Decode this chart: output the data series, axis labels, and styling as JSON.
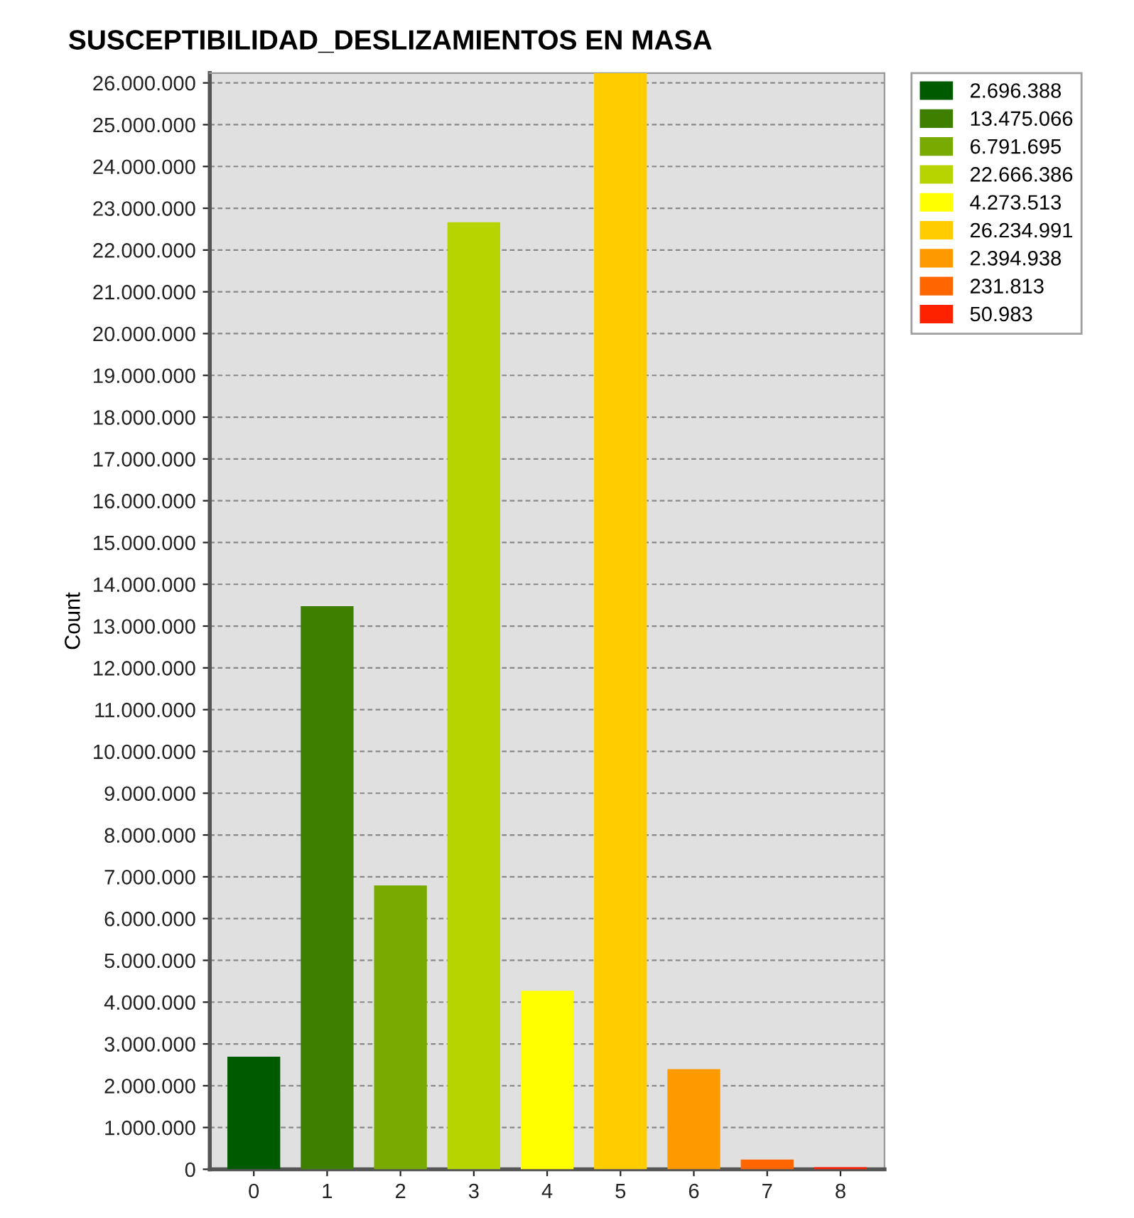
{
  "chart_data": {
    "type": "bar",
    "title": "SUSCEPTIBILIDAD_DESLIZAMIENTOS EN MASA",
    "ylabel": "Count",
    "categories": [
      "0",
      "1",
      "2",
      "3",
      "4",
      "5",
      "6",
      "7",
      "8"
    ],
    "series": [
      {
        "name": "2.696.388",
        "color": "#005a00",
        "values": [
          2696388,
          null,
          null,
          null,
          null,
          null,
          null,
          null,
          null
        ]
      },
      {
        "name": "13.475.066",
        "color": "#3f7f00",
        "values": [
          null,
          13475066,
          null,
          null,
          null,
          null,
          null,
          null,
          null
        ]
      },
      {
        "name": "6.791.695",
        "color": "#78aa00",
        "values": [
          null,
          null,
          6791695,
          null,
          null,
          null,
          null,
          null,
          null
        ]
      },
      {
        "name": "22.666.386",
        "color": "#b8d400",
        "values": [
          null,
          null,
          null,
          22666386,
          null,
          null,
          null,
          null,
          null
        ]
      },
      {
        "name": "4.273.513",
        "color": "#ffff00",
        "values": [
          null,
          null,
          null,
          null,
          4273513,
          null,
          null,
          null,
          null
        ]
      },
      {
        "name": "26.234.991",
        "color": "#ffcc00",
        "values": [
          null,
          null,
          null,
          null,
          null,
          26234991,
          null,
          null,
          null
        ]
      },
      {
        "name": "2.394.938",
        "color": "#ff9900",
        "values": [
          null,
          null,
          null,
          null,
          null,
          null,
          2394938,
          null,
          null
        ]
      },
      {
        "name": "231.813",
        "color": "#ff6600",
        "values": [
          null,
          null,
          null,
          null,
          null,
          null,
          null,
          231813,
          null
        ]
      },
      {
        "name": "50.983",
        "color": "#ff2200",
        "values": [
          null,
          null,
          null,
          null,
          null,
          null,
          null,
          null,
          50983
        ]
      }
    ],
    "ylim": [
      0,
      26234991
    ],
    "yticks": [
      0,
      {
        "value": 1000000,
        "label": "1.000.000"
      },
      {
        "value": 2000000,
        "label": "2.000.000"
      },
      {
        "value": 3000000,
        "label": "3.000.000"
      },
      {
        "value": 4000000,
        "label": "4.000.000"
      },
      {
        "value": 5000000,
        "label": "5.000.000"
      },
      {
        "value": 6000000,
        "label": "6.000.000"
      },
      {
        "value": 7000000,
        "label": "7.000.000"
      },
      {
        "value": 8000000,
        "label": "8.000.000"
      },
      {
        "value": 9000000,
        "label": "9.000.000"
      },
      {
        "value": 10000000,
        "label": "10.000.000"
      },
      {
        "value": 11000000,
        "label": "11.000.000"
      },
      {
        "value": 12000000,
        "label": "12.000.000"
      },
      {
        "value": 13000000,
        "label": "13.000.000"
      },
      {
        "value": 14000000,
        "label": "14.000.000"
      },
      {
        "value": 15000000,
        "label": "15.000.000"
      },
      {
        "value": 16000000,
        "label": "16.000.000"
      },
      {
        "value": 17000000,
        "label": "17.000.000"
      },
      {
        "value": 18000000,
        "label": "18.000.000"
      },
      {
        "value": 19000000,
        "label": "19.000.000"
      },
      {
        "value": 20000000,
        "label": "20.000.000"
      },
      {
        "value": 21000000,
        "label": "21.000.000"
      },
      {
        "value": 22000000,
        "label": "22.000.000"
      },
      {
        "value": 23000000,
        "label": "23.000.000"
      },
      {
        "value": 24000000,
        "label": "24.000.000"
      },
      {
        "value": 25000000,
        "label": "25.000.000"
      },
      {
        "value": 26000000,
        "label": "26.000.000"
      }
    ],
    "grid": "y",
    "legend": "top right"
  }
}
